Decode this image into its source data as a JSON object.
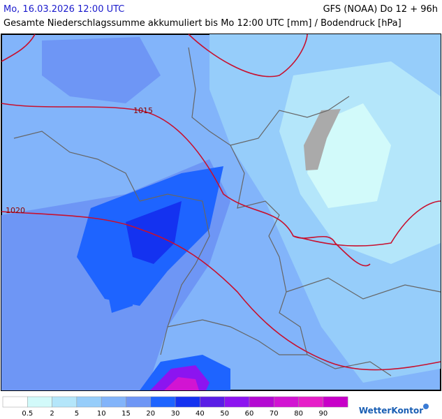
{
  "header": {
    "left": "Mo, 16.03.2026 12:00 UTC",
    "right": "GFS (NOAA) Do 12 + 96h",
    "subtitle": "Gesamte Niederschlagssumme akkumuliert bis Mo 12:00 UTC [mm] / Bodendruck [hPa]"
  },
  "map": {
    "isobar_labels": [
      "1015",
      "1020"
    ]
  },
  "legend": {
    "colors": [
      "#ffffff",
      "#d2fafa",
      "#b4e6fa",
      "#96cdfa",
      "#82b4fa",
      "#6e96f5",
      "#1e64ff",
      "#1432f0",
      "#5a1ee6",
      "#8c14f0",
      "#b40ad2",
      "#d214d2",
      "#e61ec8",
      "#c800c8"
    ],
    "labels": [
      "0.5",
      "2",
      "5",
      "10",
      "15",
      "20",
      "30",
      "40",
      "50",
      "60",
      "70",
      "80",
      "90"
    ]
  },
  "brand": "WetterKontor"
}
